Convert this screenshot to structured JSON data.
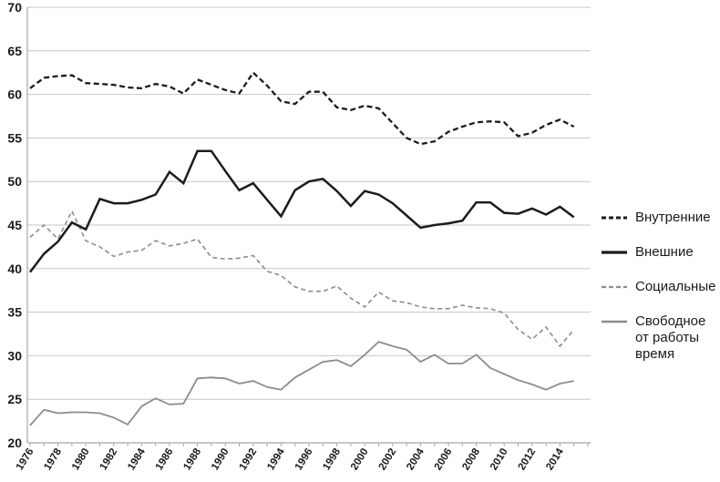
{
  "figure": {
    "background": "#ffffff",
    "title": ""
  },
  "colors": {
    "dark_line": "#1c1c1c",
    "gray_line": "#8c8c8c",
    "gridline": "#c6c6c6",
    "axis": "#a8a8a8",
    "tick_label": "#1a1a1a"
  },
  "legend": {
    "position": "right",
    "items": [
      "Внутренние",
      "Внешние",
      "Социальные",
      "Свободное от работы время"
    ]
  },
  "chart_data": {
    "type": "line",
    "title": "",
    "xlabel": "",
    "ylabel": "",
    "grid": true,
    "legend_position": "right",
    "ylim": [
      20,
      70
    ],
    "y_ticks": [
      20,
      25,
      30,
      35,
      40,
      45,
      50,
      55,
      60,
      65,
      70
    ],
    "x": [
      1976,
      1977,
      1978,
      1979,
      1980,
      1981,
      1982,
      1983,
      1984,
      1985,
      1986,
      1987,
      1988,
      1989,
      1990,
      1991,
      1992,
      1993,
      1994,
      1995,
      1996,
      1997,
      1998,
      1999,
      2000,
      2001,
      2002,
      2003,
      2004,
      2005,
      2006,
      2007,
      2008,
      2009,
      2010,
      2011,
      2012,
      2013,
      2014,
      2015
    ],
    "x_tick_labels": [
      "1976",
      "1978",
      "1980",
      "1982",
      "1984",
      "1986",
      "1988",
      "1990",
      "1992",
      "1994",
      "1996",
      "1998",
      "2000",
      "2002",
      "2004",
      "2006",
      "2008",
      "2010",
      "2012",
      "2014"
    ],
    "series": [
      {
        "name": "Внутренние",
        "color": "#1c1c1c",
        "style": "dashed",
        "width": 2.3,
        "values": [
          60.7,
          61.9,
          62.1,
          62.2,
          61.3,
          61.2,
          61.1,
          60.8,
          60.7,
          61.2,
          60.9,
          60.1,
          61.7,
          61.1,
          60.5,
          60.1,
          62.5,
          61.0,
          59.2,
          58.9,
          60.3,
          60.3,
          58.5,
          58.2,
          58.7,
          58.4,
          56.7,
          55.0,
          54.3,
          54.6,
          55.7,
          56.3,
          56.8,
          56.9,
          56.8,
          55.2,
          55.6,
          56.5,
          57.1,
          56.3
        ]
      },
      {
        "name": "Внешние",
        "color": "#1c1c1c",
        "style": "solid",
        "width": 2.5,
        "values": [
          39.6,
          41.7,
          43.1,
          45.3,
          44.5,
          48.0,
          47.5,
          47.5,
          47.9,
          48.5,
          51.1,
          49.8,
          53.5,
          53.5,
          51.2,
          49.0,
          49.8,
          47.9,
          46.0,
          49.0,
          50.0,
          50.3,
          48.9,
          47.2,
          48.9,
          48.5,
          47.5,
          46.1,
          44.7,
          45.0,
          45.2,
          45.5,
          47.6,
          47.6,
          46.4,
          46.3,
          46.9,
          46.2,
          47.1,
          45.9
        ]
      },
      {
        "name": "Социальные",
        "color": "#8c8c8c",
        "style": "dashed",
        "width": 1.6,
        "values": [
          43.6,
          45.0,
          43.4,
          46.6,
          43.2,
          42.5,
          41.4,
          41.9,
          42.1,
          43.2,
          42.6,
          42.9,
          43.4,
          41.3,
          41.1,
          41.2,
          41.5,
          39.7,
          39.2,
          37.9,
          37.4,
          37.4,
          38.0,
          36.6,
          35.6,
          37.3,
          36.3,
          36.1,
          35.6,
          35.4,
          35.4,
          35.8,
          35.5,
          35.4,
          34.9,
          33.0,
          31.9,
          33.3,
          31.1,
          33.0
        ]
      },
      {
        "name": "Свободное от работы время",
        "color": "#8c8c8c",
        "style": "solid",
        "width": 1.8,
        "values": [
          22.0,
          23.8,
          23.4,
          23.5,
          23.5,
          23.4,
          22.9,
          22.1,
          24.2,
          25.1,
          24.4,
          24.5,
          27.4,
          27.5,
          27.4,
          26.8,
          27.1,
          26.4,
          26.1,
          27.5,
          28.4,
          29.3,
          29.5,
          28.8,
          30.1,
          31.6,
          31.1,
          30.7,
          29.3,
          30.1,
          29.1,
          29.1,
          30.1,
          28.6,
          27.9,
          27.2,
          26.7,
          26.1,
          26.8,
          27.1
        ]
      }
    ]
  }
}
